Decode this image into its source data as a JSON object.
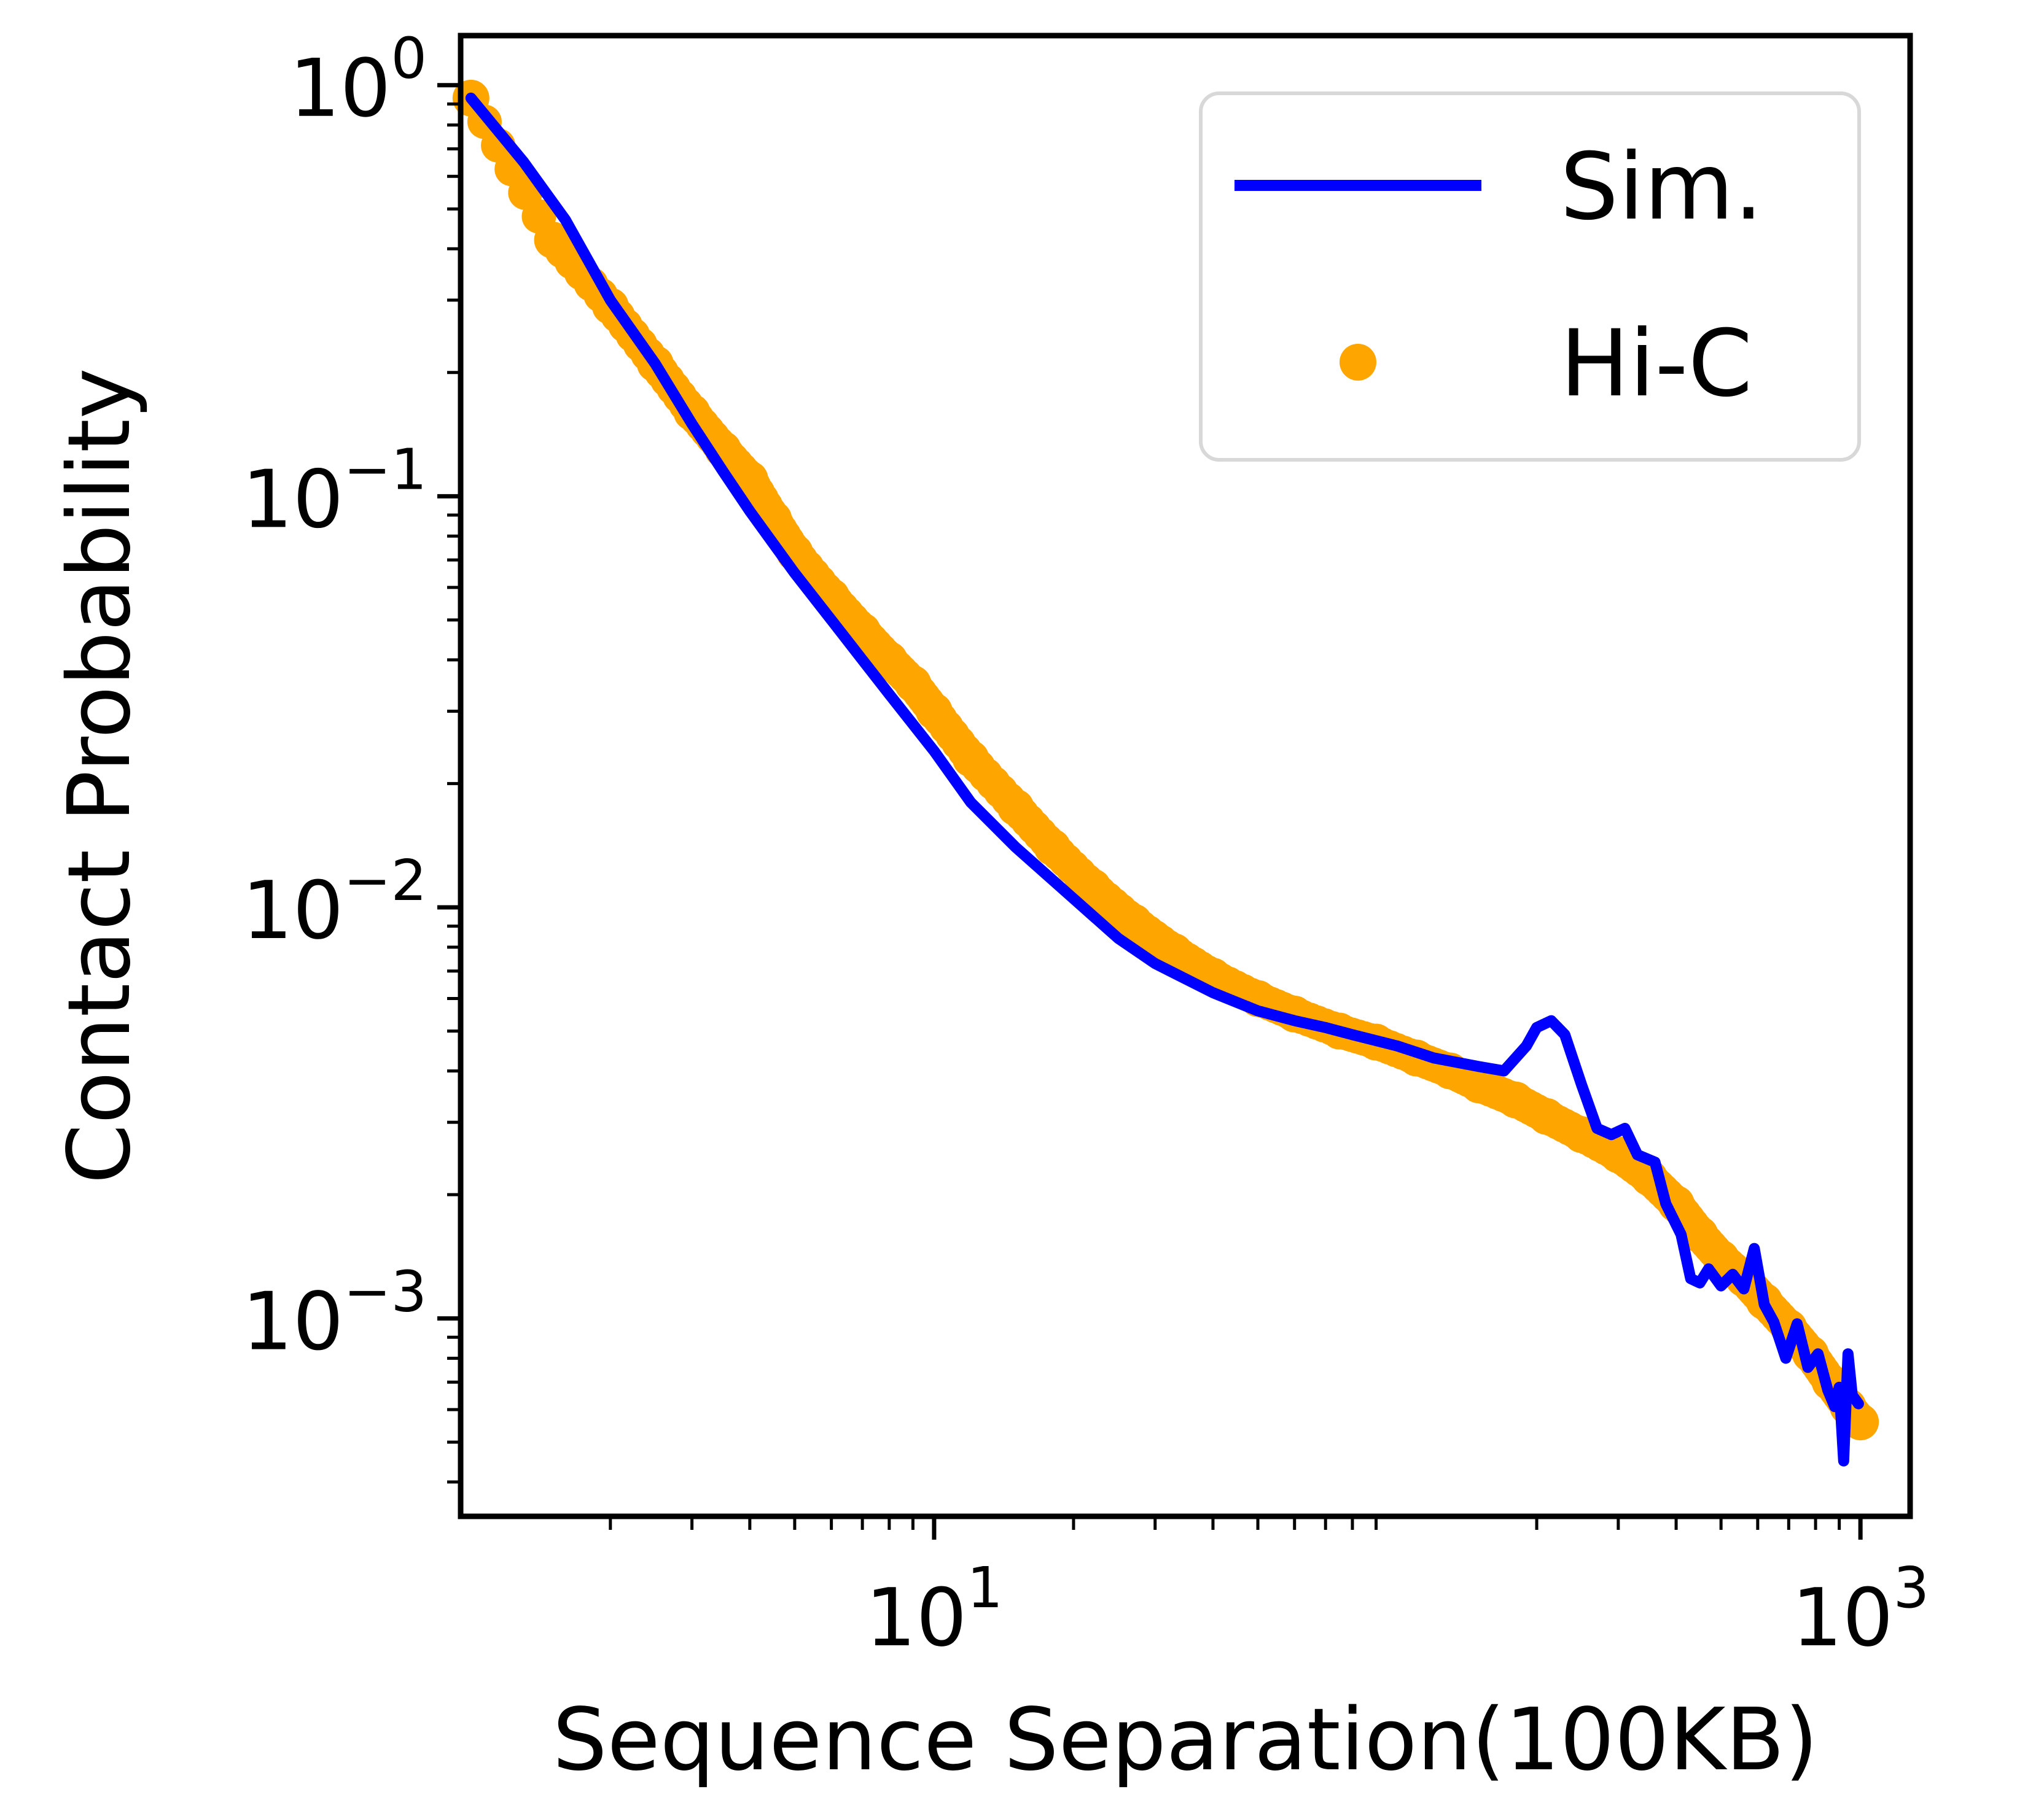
{
  "chart_data": {
    "type": "line",
    "title": "",
    "xlabel": "Sequence Separation(100KB)",
    "ylabel": "Contact Probability",
    "xscale": "log",
    "yscale": "log",
    "xlim": [
      0.95,
      1280
    ],
    "ylim": [
      0.00033,
      1.32
    ],
    "x_ticks": [
      {
        "value": 10,
        "base": "10",
        "exp": "1"
      },
      {
        "value": 1000,
        "base": "10",
        "exp": "3"
      }
    ],
    "y_ticks": [
      {
        "value": 1,
        "base": "10",
        "exp": "0"
      },
      {
        "value": 0.1,
        "base": "10",
        "exp": "−1"
      },
      {
        "value": 0.01,
        "base": "10",
        "exp": "−2"
      },
      {
        "value": 0.001,
        "base": "10",
        "exp": "−3"
      }
    ],
    "grid": false,
    "legend": {
      "position": "top-right"
    },
    "series": [
      {
        "name": "Sim.",
        "type": "line",
        "color": "#0000ff",
        "points": [
          [
            1,
            0.93
          ],
          [
            1.3,
            0.65
          ],
          [
            1.6,
            0.47
          ],
          [
            2,
            0.3
          ],
          [
            2.5,
            0.21
          ],
          [
            3,
            0.15
          ],
          [
            3.5,
            0.115
          ],
          [
            4,
            0.092
          ],
          [
            5,
            0.065
          ],
          [
            6,
            0.05
          ],
          [
            7,
            0.04
          ],
          [
            8,
            0.033
          ],
          [
            10,
            0.024
          ],
          [
            12,
            0.018
          ],
          [
            15,
            0.014
          ],
          [
            20,
            0.0105
          ],
          [
            25,
            0.0084
          ],
          [
            30,
            0.0073
          ],
          [
            40,
            0.0062
          ],
          [
            50,
            0.0056
          ],
          [
            60,
            0.0053
          ],
          [
            70,
            0.0051
          ],
          [
            80,
            0.0049
          ],
          [
            100,
            0.0046
          ],
          [
            120,
            0.0043
          ],
          [
            150,
            0.0041
          ],
          [
            170,
            0.004
          ],
          [
            190,
            0.0046
          ],
          [
            200,
            0.0051
          ],
          [
            215,
            0.0053
          ],
          [
            230,
            0.0049
          ],
          [
            250,
            0.0037
          ],
          [
            270,
            0.0029
          ],
          [
            290,
            0.0028
          ],
          [
            310,
            0.0029
          ],
          [
            330,
            0.0025
          ],
          [
            360,
            0.0024
          ],
          [
            380,
            0.0019
          ],
          [
            410,
            0.0016
          ],
          [
            430,
            0.00125
          ],
          [
            450,
            0.00122
          ],
          [
            470,
            0.00132
          ],
          [
            500,
            0.0012
          ],
          [
            530,
            0.00128
          ],
          [
            560,
            0.00118
          ],
          [
            590,
            0.00148
          ],
          [
            620,
            0.00108
          ],
          [
            650,
            0.00098
          ],
          [
            690,
            0.0008
          ],
          [
            730,
            0.00097
          ],
          [
            770,
            0.00076
          ],
          [
            810,
            0.00082
          ],
          [
            850,
            0.00067
          ],
          [
            880,
            0.00061
          ],
          [
            900,
            0.00068
          ],
          [
            920,
            0.00045
          ],
          [
            940,
            0.00082
          ],
          [
            960,
            0.00065
          ],
          [
            990,
            0.00062
          ]
        ]
      },
      {
        "name": "Hi-C",
        "type": "scatter",
        "color": "#ffa500",
        "points": [
          [
            1,
            0.93
          ],
          [
            1.5,
            0.42
          ],
          [
            2,
            0.29
          ],
          [
            2.5,
            0.21
          ],
          [
            3,
            0.16
          ],
          [
            3.5,
            0.13
          ],
          [
            4,
            0.11
          ],
          [
            4.5,
            0.088
          ],
          [
            5,
            0.073
          ],
          [
            6,
            0.057
          ],
          [
            7,
            0.047
          ],
          [
            8,
            0.04
          ],
          [
            9,
            0.035
          ],
          [
            10,
            0.03
          ],
          [
            12,
            0.023
          ],
          [
            15,
            0.0175
          ],
          [
            18,
            0.014
          ],
          [
            22,
            0.0112
          ],
          [
            27,
            0.0092
          ],
          [
            33,
            0.0078
          ],
          [
            40,
            0.0068
          ],
          [
            50,
            0.006
          ],
          [
            60,
            0.0055
          ],
          [
            75,
            0.005
          ],
          [
            90,
            0.0047
          ],
          [
            110,
            0.0043
          ],
          [
            130,
            0.004
          ],
          [
            150,
            0.0037
          ],
          [
            180,
            0.0034
          ],
          [
            210,
            0.0031
          ],
          [
            250,
            0.0028
          ],
          [
            300,
            0.0025
          ],
          [
            350,
            0.0022
          ],
          [
            400,
            0.0019
          ],
          [
            450,
            0.0016
          ],
          [
            500,
            0.0014
          ],
          [
            560,
            0.00125
          ],
          [
            620,
            0.0011
          ],
          [
            700,
            0.00095
          ],
          [
            780,
            0.00082
          ],
          [
            860,
            0.0007
          ],
          [
            940,
            0.00061
          ],
          [
            1000,
            0.00056
          ]
        ]
      }
    ]
  }
}
